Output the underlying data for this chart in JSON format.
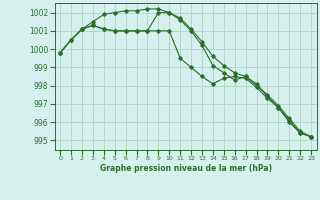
{
  "title": "Graphe pression niveau de la mer (hPa)",
  "background_color": "#d6f0ee",
  "grid_color": "#b0d8c8",
  "line_color": "#2d6e2d",
  "x_labels": [
    "0",
    "1",
    "2",
    "3",
    "4",
    "5",
    "6",
    "7",
    "8",
    "9",
    "10",
    "11",
    "12",
    "13",
    "14",
    "15",
    "16",
    "17",
    "18",
    "19",
    "20",
    "21",
    "22",
    "23"
  ],
  "xlim": [
    -0.5,
    23.5
  ],
  "ylim": [
    994.5,
    1002.5
  ],
  "yticks": [
    995,
    996,
    997,
    998,
    999,
    1000,
    1001,
    1002
  ],
  "series": [
    [
      999.8,
      1000.5,
      1001.1,
      1001.3,
      1001.1,
      1001.0,
      1001.0,
      1001.0,
      1001.0,
      1002.0,
      1002.0,
      1001.6,
      1001.0,
      1000.2,
      999.1,
      998.7,
      998.3,
      998.5,
      998.1,
      997.4,
      996.8,
      996.0,
      995.4,
      995.2
    ],
    [
      999.8,
      1000.5,
      1001.1,
      1001.5,
      1001.9,
      1002.0,
      1002.1,
      1002.1,
      1002.2,
      1002.2,
      1002.0,
      1001.7,
      1001.1,
      1000.4,
      999.6,
      999.1,
      998.7,
      998.5,
      998.0,
      997.5,
      996.9,
      996.2,
      995.5,
      995.2
    ],
    [
      999.8,
      1000.5,
      1001.1,
      1001.3,
      1001.1,
      1001.0,
      1001.0,
      1001.0,
      1001.0,
      1001.0,
      1001.0,
      999.5,
      999.0,
      998.5,
      998.1,
      998.4,
      998.5,
      998.4,
      997.9,
      997.3,
      996.8,
      996.1,
      995.4,
      995.2
    ]
  ]
}
